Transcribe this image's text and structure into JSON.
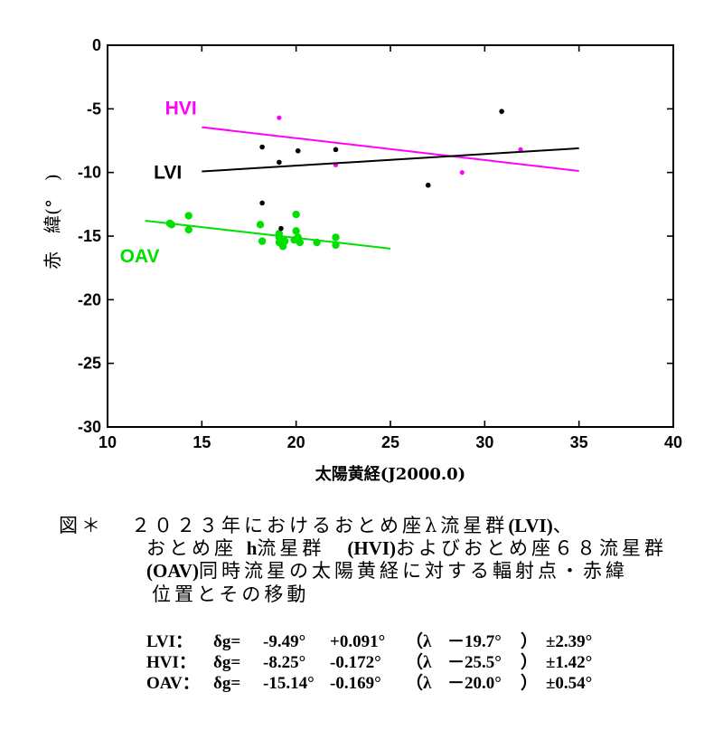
{
  "chart_data": {
    "type": "scatter",
    "title": "",
    "xlabel": "太陽黄経(J2000.0)",
    "ylabel": "赤　緯(°　)",
    "xlim": [
      10,
      40
    ],
    "ylim": [
      -30,
      0
    ],
    "xticks": [
      10,
      15,
      20,
      25,
      30,
      35,
      40
    ],
    "yticks": [
      0,
      -5,
      -10,
      -15,
      -20,
      -25,
      -30
    ],
    "grid": false,
    "legend": "none",
    "series": [
      {
        "name": "LVI",
        "color": "#000000",
        "points": [
          [
            18.2,
            -8.0
          ],
          [
            18.2,
            -12.4
          ],
          [
            19.1,
            -9.2
          ],
          [
            19.2,
            -14.4
          ],
          [
            20.1,
            -8.3
          ],
          [
            22.1,
            -8.2
          ],
          [
            27.0,
            -11.0
          ],
          [
            30.9,
            -5.2
          ]
        ],
        "fit": {
          "intercept": -9.49,
          "slope": 0.091,
          "ref_x": 19.7,
          "x_from": 15,
          "x_to": 35
        }
      },
      {
        "name": "HVI",
        "color": "#ff00ff",
        "points": [
          [
            19.1,
            -5.7
          ],
          [
            22.1,
            -9.4
          ],
          [
            28.8,
            -10.0
          ],
          [
            31.9,
            -8.2
          ]
        ],
        "fit": {
          "intercept": -8.25,
          "slope": -0.172,
          "ref_x": 25.5,
          "x_from": 15,
          "x_to": 35
        }
      },
      {
        "name": "OAV",
        "color": "#00e000",
        "points": [
          [
            13.3,
            -14.0
          ],
          [
            13.4,
            -14.1
          ],
          [
            14.3,
            -13.4
          ],
          [
            14.3,
            -14.5
          ],
          [
            18.1,
            -14.1
          ],
          [
            18.2,
            -15.4
          ],
          [
            19.1,
            -14.8
          ],
          [
            19.1,
            -15.1
          ],
          [
            19.1,
            -15.5
          ],
          [
            19.3,
            -15.8
          ],
          [
            19.4,
            -15.4
          ],
          [
            20.0,
            -13.3
          ],
          [
            20.0,
            -14.6
          ],
          [
            20.1,
            -15.1
          ],
          [
            20.2,
            -15.5
          ],
          [
            19.9,
            -15.3
          ],
          [
            21.1,
            -15.5
          ],
          [
            22.1,
            -15.1
          ],
          [
            22.1,
            -15.7
          ]
        ],
        "fit": {
          "intercept": -15.14,
          "slope": -0.169,
          "ref_x": 20.0,
          "x_from": 12,
          "x_to": 25
        }
      }
    ]
  },
  "caption": {
    "figure_label": "図＊",
    "line1": [
      "２０２３年におけるおとめ座λ流星群",
      "(LVI)",
      "、"
    ],
    "line2": [
      "おとめ座 ",
      "h",
      "流星群　",
      "(HVI)",
      "およびおとめ座６８流星群"
    ],
    "line3": [
      "(OAV)",
      "同時流星の太陽黄経に対する輻射点・赤緯"
    ],
    "line4": "位置とその移動"
  },
  "equations": [
    {
      "name": "LVI：",
      "lhs": "δg=",
      "a": "-9.49°",
      "b": "+0.091°",
      "open": "（λ",
      "ref": "－19.7°",
      "close": "）",
      "pm": "±2.39°"
    },
    {
      "name": "HVI：",
      "lhs": "δg=",
      "a": "-8.25°",
      "b": "-0.172°",
      "open": "（λ",
      "ref": "－25.5°",
      "close": "）",
      "pm": "±1.42°"
    },
    {
      "name": "OAV：",
      "lhs": "δg=",
      "a": "-15.14°",
      "b": "-0.169°",
      "open": "（λ",
      "ref": "－20.0°",
      "close": "）",
      "pm": "±0.54°"
    }
  ]
}
